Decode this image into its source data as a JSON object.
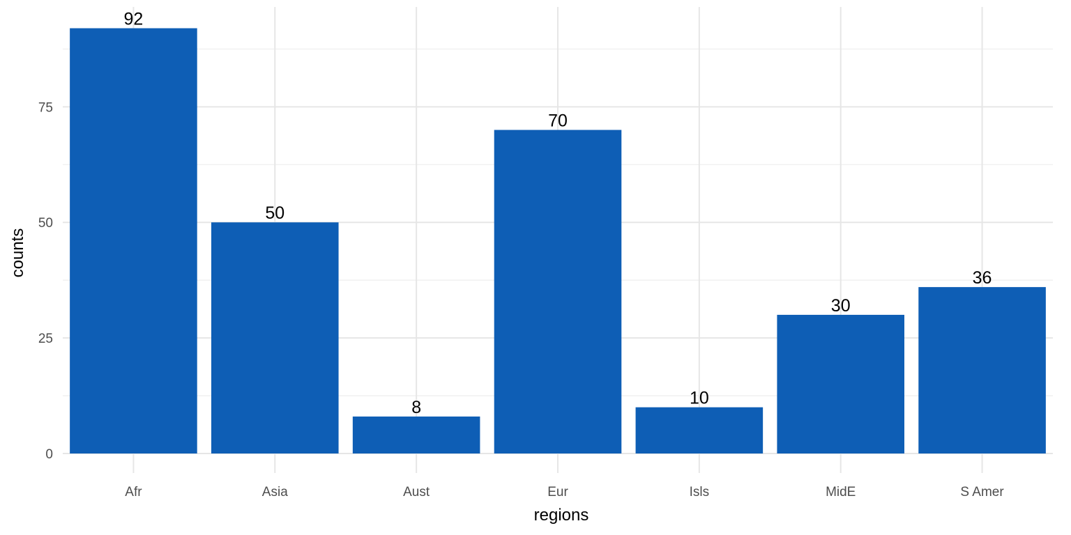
{
  "chart_data": {
    "type": "bar",
    "categories": [
      "Afr",
      "Asia",
      "Aust",
      "Eur",
      "Isls",
      "MidE",
      "S Amer"
    ],
    "values": [
      92,
      50,
      8,
      70,
      10,
      30,
      36
    ],
    "data_labels": [
      "92",
      "50",
      "8",
      "70",
      "10",
      "30",
      "36"
    ],
    "title": "",
    "xlabel": "regions",
    "ylabel": "counts",
    "ylim": [
      0,
      96.6
    ],
    "yticks": [
      0,
      25,
      50,
      75
    ],
    "ytick_labels": [
      "0",
      "25",
      "50",
      "75"
    ],
    "grid": true,
    "legend": "none",
    "colors": {
      "bar": "#0e5eb5",
      "grid": "#e6e6e6",
      "tick_text": "#4d4d4d",
      "label_text": "#000000"
    }
  }
}
